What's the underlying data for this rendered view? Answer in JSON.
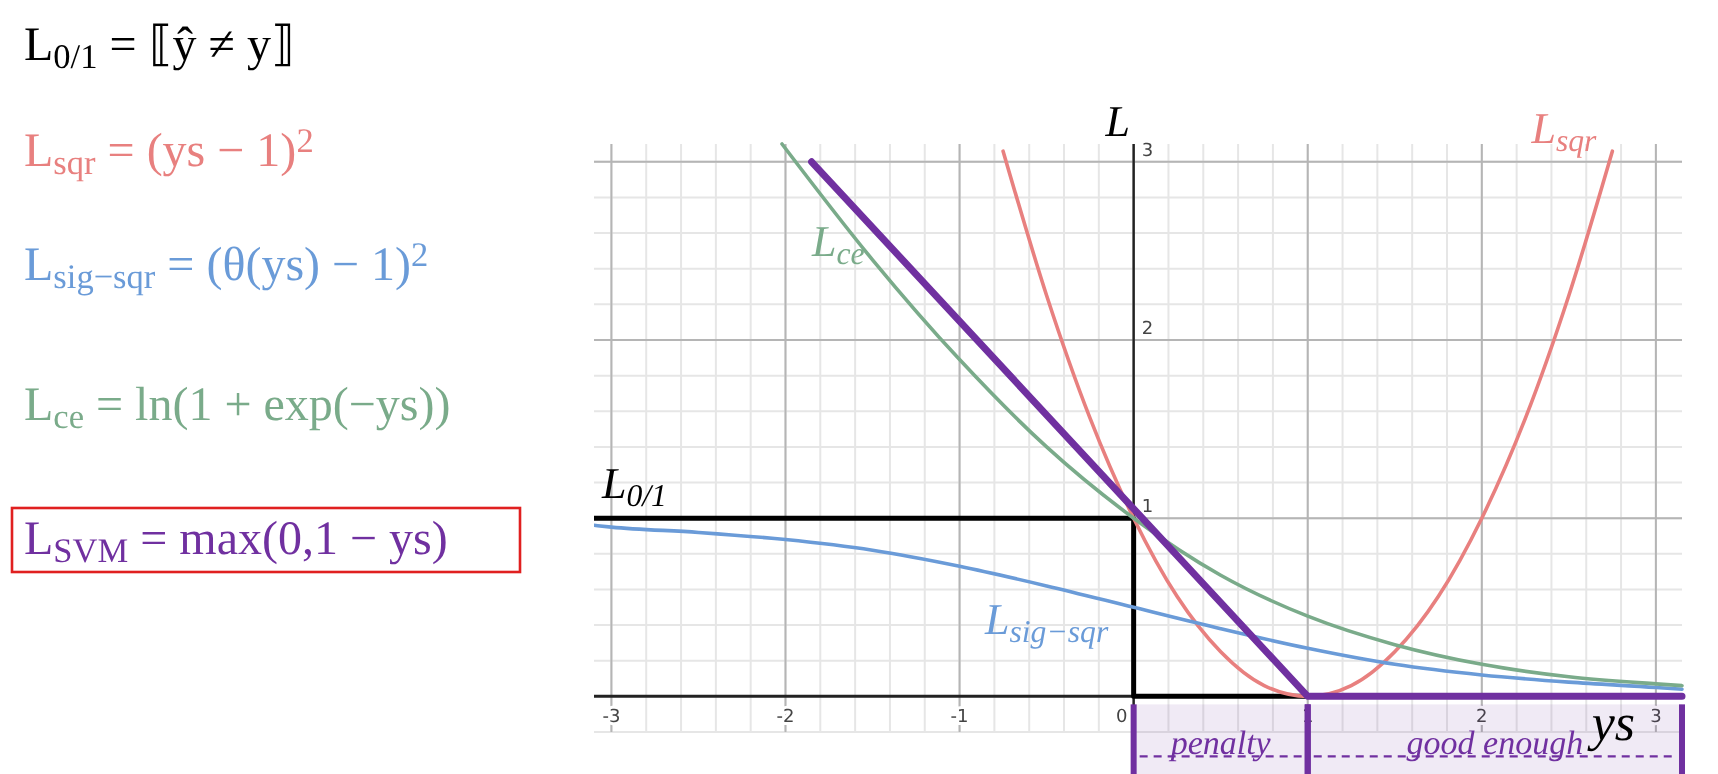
{
  "chart_data": {
    "type": "line",
    "xlabel": "ys",
    "ylabel": "L",
    "xlim": [
      -3.1,
      3.15
    ],
    "ylim": [
      -0.2,
      3.1
    ],
    "xticks": [
      -3,
      -2,
      -1,
      0,
      1,
      2,
      3
    ],
    "yticks": [
      1,
      2,
      3
    ],
    "grid": true,
    "marker": "none",
    "line_style": "solid",
    "series": [
      {
        "name": "L$_{0/1}$",
        "color": "#000000",
        "x": [
          -3.1,
          0,
          0,
          3.15
        ],
        "values": [
          1,
          1,
          0,
          0
        ]
      },
      {
        "name": "L$_{sqr}$",
        "color": "#e8807f",
        "x": [
          -0.75,
          -0.5,
          -0.25,
          0,
          0.25,
          0.5,
          0.75,
          1,
          1.25,
          1.5,
          1.75,
          2,
          2.25,
          2.5,
          2.75
        ],
        "values": [
          3.06,
          2.25,
          1.56,
          1,
          0.56,
          0.25,
          0.06,
          0,
          0.06,
          0.25,
          0.56,
          1,
          1.56,
          2.25,
          3.06
        ]
      },
      {
        "name": "L$_{sig−sqr}$",
        "color": "#6a9bd8",
        "x": [
          -3.1,
          -3,
          -2.5,
          -2,
          -1.5,
          -1,
          -0.5,
          0,
          0.5,
          1,
          1.5,
          2,
          2.5,
          3,
          3.15
        ],
        "values": [
          0.96,
          0.95,
          0.92,
          0.88,
          0.82,
          0.73,
          0.62,
          0.5,
          0.38,
          0.27,
          0.18,
          0.12,
          0.08,
          0.05,
          0.04
        ]
      },
      {
        "name": "L$_{ce}$",
        "color": "#7aab8a",
        "x": [
          -2.02,
          -1.5,
          -1,
          -0.5,
          0,
          0.5,
          1,
          1.5,
          2,
          2.5,
          3,
          3.15
        ],
        "values": [
          3.1,
          2.45,
          1.89,
          1.4,
          1,
          0.68,
          0.45,
          0.29,
          0.18,
          0.11,
          0.07,
          0.06
        ]
      },
      {
        "color": "#7030a0",
        "x": [
          -1.85,
          1,
          3.15
        ],
        "values": [
          3.0,
          0,
          0
        ]
      }
    ],
    "bands": [
      {
        "axis": "x",
        "from": 0,
        "to": 1,
        "label": "penalty",
        "color": "#7030a0"
      },
      {
        "axis": "x",
        "from": 1,
        "to": 3.15,
        "label": "good enough",
        "color": "#7030a0"
      }
    ],
    "annotations": [
      "L$_{0/1}$ = ⟦ŷ ≠ y⟧",
      "L$_{sqr}$ = (ys − 1)$^{2}$",
      "L$_{sig−sqr}$ = (θ(ys) − 1)$^{2}$",
      "L$_{ce}$ = ln(1 + exp(−ys))",
      "L$_{SVM}$ = max(0,1 − ys)"
    ]
  }
}
